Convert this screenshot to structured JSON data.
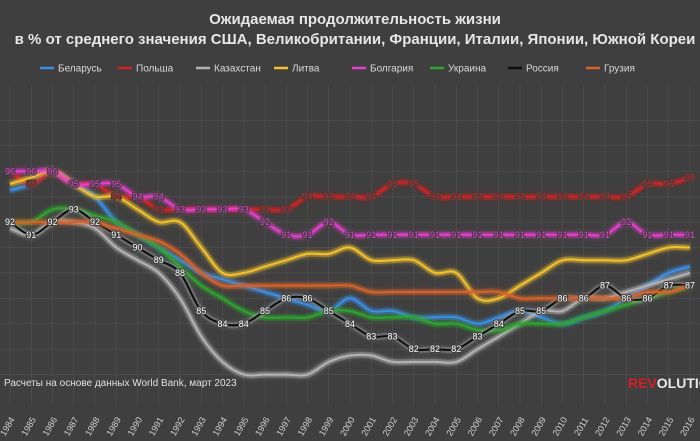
{
  "chart_data": {
    "type": "line",
    "title": "Ожидаемая продолжительность жизни",
    "subtitle": "в % от среднего значения США, Великобритании, Франции, Италии, Японии, Южной Кореи",
    "x": [
      1984,
      1985,
      1986,
      1987,
      1988,
      1989,
      1990,
      1991,
      1992,
      1993,
      1994,
      1995,
      1996,
      1997,
      1998,
      1999,
      2000,
      2001,
      2002,
      2003,
      2004,
      2005,
      2006,
      2007,
      2008,
      2009,
      2010,
      2011,
      2012,
      2013,
      2014,
      2015,
      2016
    ],
    "x_tick_labels": [
      "1984",
      "1985",
      "1986",
      "1987",
      "1988",
      "1989",
      "1990",
      "1991",
      "1992",
      "1993",
      "1994",
      "1995",
      "1996",
      "1997",
      "1998",
      "1999",
      "2000",
      "2001",
      "2002",
      "2003",
      "2004",
      "2005",
      "2006",
      "2007",
      "2008",
      "2009",
      "2010",
      "2011",
      "2012",
      "2013",
      "2014",
      "2015",
      "2016"
    ],
    "ylim": [
      78,
      102
    ],
    "grid": true,
    "legend_position": "top",
    "series": [
      {
        "name": "Беларусь",
        "color": "#3a8ee6",
        "label_values": false,
        "values": [
          94.5,
          95,
          96,
          95,
          94,
          92,
          91,
          90,
          89,
          88,
          87.5,
          87,
          86.5,
          86,
          85.5,
          85,
          86,
          85,
          85,
          84.5,
          84.5,
          84.5,
          84,
          84.5,
          85,
          84.5,
          84,
          84.5,
          85,
          86,
          87,
          88,
          88.5
        ]
      },
      {
        "name": "Польша",
        "color": "#d22222",
        "label_values": true,
        "values": [
          96,
          95,
          96,
          95,
          95,
          94,
          94,
          93,
          93,
          93,
          93,
          93,
          93,
          93,
          94,
          94,
          94,
          94,
          95,
          95,
          94,
          94,
          94,
          94,
          94,
          94,
          94,
          94,
          94,
          94,
          95,
          95,
          95.5
        ]
      },
      {
        "name": "Казахстан",
        "color": "#b4b4b4",
        "label_values": false,
        "values": [
          91.5,
          91,
          92,
          92,
          91.5,
          90,
          89,
          88,
          86,
          83,
          81,
          80,
          80,
          80,
          80,
          81,
          81.5,
          81.5,
          81,
          81,
          81,
          81,
          82,
          83,
          84,
          85,
          85,
          86,
          86,
          86.5,
          87,
          87.5,
          88
        ]
      },
      {
        "name": "Литва",
        "color": "#f2c12e",
        "label_values": false,
        "values": [
          95,
          95.5,
          96,
          95,
          94,
          94,
          93,
          92,
          92,
          90,
          88,
          88,
          88.5,
          89,
          89.5,
          89.5,
          90,
          89,
          89,
          89,
          88,
          88,
          86,
          86,
          87,
          88,
          89,
          89,
          89,
          89,
          89.5,
          90,
          90
        ]
      },
      {
        "name": "Болгария",
        "color": "#e63fcf",
        "label_values": true,
        "values": [
          96,
          96,
          96,
          95,
          95,
          95,
          94,
          94,
          93,
          93,
          93,
          93,
          92,
          91,
          91,
          92,
          91,
          91,
          91,
          91,
          91,
          91,
          91,
          91,
          91,
          91,
          91,
          91,
          91,
          92,
          91,
          91,
          91
        ]
      },
      {
        "name": "Украина",
        "color": "#2fa32f",
        "label_values": false,
        "values": [
          92,
          92,
          93,
          93,
          92.5,
          92,
          91,
          90,
          88.5,
          87,
          86,
          85,
          84.5,
          84.5,
          84.5,
          85,
          85,
          84.5,
          84.5,
          84.5,
          84,
          84,
          83.5,
          83.5,
          84,
          84,
          84,
          84.5,
          85,
          85.5,
          86,
          86.5,
          87
        ]
      },
      {
        "name": "Россия",
        "color": "#0e0e0e",
        "label_values": true,
        "values": [
          92,
          91,
          92,
          93,
          92,
          91,
          90,
          89,
          88,
          85,
          84,
          84,
          85,
          86,
          86,
          85,
          84,
          83,
          83,
          82,
          82,
          82,
          83,
          84,
          85,
          85,
          86,
          86,
          87,
          86,
          86,
          87,
          87
        ]
      },
      {
        "name": "Грузия",
        "color": "#d6632a",
        "label_values": false,
        "values": [
          92,
          92,
          92,
          92,
          92,
          91.5,
          91,
          90.5,
          89.5,
          88,
          87,
          87,
          87,
          87,
          87,
          87,
          87,
          86.5,
          86.5,
          86.5,
          86.5,
          86.5,
          86.5,
          86.5,
          86,
          86,
          86,
          86,
          86,
          86,
          86.5,
          86.5,
          87
        ]
      }
    ],
    "source": "Расчеты на основе данных World Bank, март 2023",
    "brand": "REVOLUTION"
  },
  "colors": {
    "background": "#3f3f3f",
    "grid": "#555555",
    "brand_red": "#d21f26",
    "brand_white": "#e8e8e8"
  }
}
